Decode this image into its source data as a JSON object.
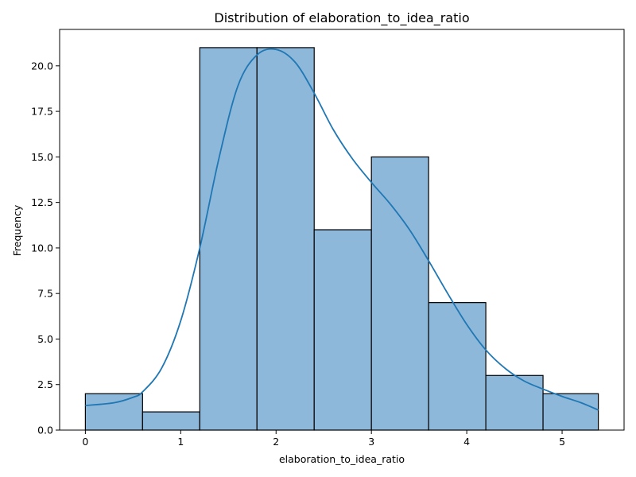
{
  "chart_data": {
    "type": "bar",
    "title": "Distribution of elaboration_to_idea_ratio",
    "xlabel": "elaboration_to_idea_ratio",
    "ylabel": "Frequency",
    "bins": [
      {
        "x0": 0.0,
        "x1": 0.6,
        "count": 2
      },
      {
        "x0": 0.6,
        "x1": 1.2,
        "count": 1
      },
      {
        "x0": 1.2,
        "x1": 1.8,
        "count": 21
      },
      {
        "x0": 1.8,
        "x1": 2.4,
        "count": 21
      },
      {
        "x0": 2.4,
        "x1": 3.0,
        "count": 11
      },
      {
        "x0": 3.0,
        "x1": 3.6,
        "count": 15
      },
      {
        "x0": 3.6,
        "x1": 4.2,
        "count": 7
      },
      {
        "x0": 4.2,
        "x1": 4.8,
        "count": 3
      },
      {
        "x0": 4.8,
        "x1": 5.38,
        "count": 2
      }
    ],
    "kde": {
      "x": [
        0.0,
        0.3,
        0.5,
        0.6,
        0.8,
        1.0,
        1.2,
        1.4,
        1.6,
        1.8,
        2.0,
        2.2,
        2.4,
        2.6,
        2.8,
        3.0,
        3.2,
        3.4,
        3.6,
        3.8,
        4.0,
        4.2,
        4.4,
        4.6,
        4.8,
        5.0,
        5.2,
        5.38
      ],
      "y": [
        1.35,
        1.5,
        1.8,
        2.1,
        3.4,
        6.0,
        10.0,
        14.9,
        18.9,
        20.6,
        20.9,
        20.2,
        18.5,
        16.5,
        14.9,
        13.6,
        12.4,
        11.0,
        9.3,
        7.5,
        5.8,
        4.4,
        3.4,
        2.7,
        2.25,
        1.85,
        1.5,
        1.1
      ]
    },
    "xlim": [
      -0.27,
      5.65
    ],
    "ylim": [
      0,
      22.0
    ],
    "xticks": [
      0,
      1,
      2,
      3,
      4,
      5
    ],
    "xtick_labels": [
      "0",
      "1",
      "2",
      "3",
      "4",
      "5"
    ],
    "yticks": [
      0,
      2.5,
      5,
      7.5,
      10,
      12.5,
      15,
      17.5,
      20
    ],
    "ytick_labels": [
      "0.0",
      "2.5",
      "5.0",
      "7.5",
      "10.0",
      "12.5",
      "15.0",
      "17.5",
      "20.0"
    ],
    "grid": false,
    "legend": "none",
    "colors": {
      "bar_fill": "#8db8da",
      "bar_edge": "#000000",
      "kde_line": "#1f77b4",
      "axes": "#000000"
    }
  }
}
